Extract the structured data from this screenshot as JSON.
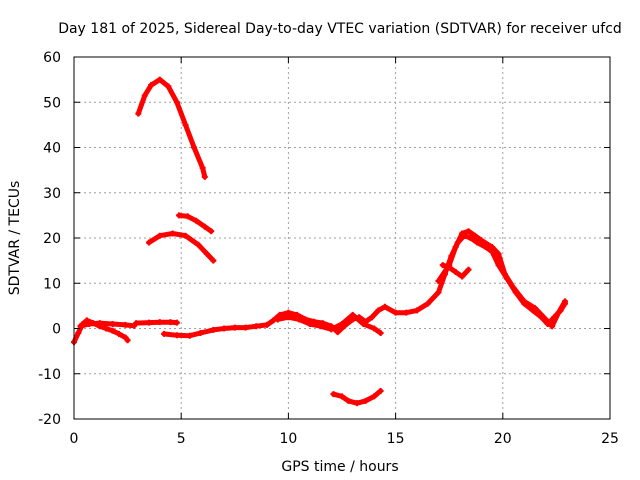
{
  "chart_data": {
    "type": "line",
    "title": "Day 181 of 2025, Sidereal Day-to-day VTEC variation (SDTVAR) for receiver ufcd",
    "xlabel": "GPS time / hours",
    "ylabel": "SDTVAR / TECUs",
    "xlim": [
      0,
      25
    ],
    "ylim": [
      -20,
      60
    ],
    "xticks": [
      0,
      5,
      10,
      15,
      20,
      25
    ],
    "yticks": [
      -20,
      -10,
      0,
      10,
      20,
      30,
      40,
      50,
      60
    ],
    "grid": true,
    "color": "#ff0000",
    "series": [
      {
        "name": "arc-peak-55",
        "points": [
          [
            3.0,
            47.5
          ],
          [
            3.3,
            51.5
          ],
          [
            3.6,
            53.8
          ],
          [
            4.0,
            55.0
          ],
          [
            4.4,
            53.5
          ],
          [
            4.8,
            50.0
          ],
          [
            5.2,
            45.0
          ],
          [
            5.6,
            40.0
          ],
          [
            6.0,
            35.5
          ],
          [
            6.1,
            33.5
          ]
        ]
      },
      {
        "name": "arc-25",
        "points": [
          [
            4.9,
            25.0
          ],
          [
            5.3,
            24.8
          ],
          [
            5.7,
            23.8
          ],
          [
            6.1,
            22.5
          ],
          [
            6.4,
            21.5
          ]
        ]
      },
      {
        "name": "arc-21",
        "points": [
          [
            3.5,
            19.0
          ],
          [
            4.0,
            20.5
          ],
          [
            4.6,
            21.0
          ],
          [
            5.2,
            20.5
          ],
          [
            5.8,
            18.5
          ],
          [
            6.2,
            16.5
          ],
          [
            6.5,
            15.0
          ]
        ]
      },
      {
        "name": "early-cluster",
        "points": [
          [
            0.0,
            -3.0
          ],
          [
            0.2,
            -1.0
          ],
          [
            0.4,
            1.0
          ],
          [
            0.6,
            1.8
          ],
          [
            0.9,
            1.2
          ],
          [
            1.2,
            0.5
          ],
          [
            1.5,
            0.0
          ],
          [
            1.8,
            -0.5
          ],
          [
            2.1,
            -1.2
          ],
          [
            2.4,
            -2.0
          ],
          [
            2.5,
            -2.6
          ]
        ]
      },
      {
        "name": "early-flat",
        "points": [
          [
            0.3,
            0.5
          ],
          [
            0.7,
            1.0
          ],
          [
            1.2,
            1.2
          ],
          [
            1.8,
            1.0
          ],
          [
            2.4,
            0.8
          ],
          [
            2.8,
            0.6
          ]
        ]
      },
      {
        "name": "flat-1p5",
        "points": [
          [
            2.9,
            1.2
          ],
          [
            3.5,
            1.3
          ],
          [
            4.0,
            1.4
          ],
          [
            4.5,
            1.4
          ],
          [
            4.8,
            1.3
          ]
        ]
      },
      {
        "name": "long-baseline",
        "points": [
          [
            4.2,
            -1.2
          ],
          [
            4.8,
            -1.5
          ],
          [
            5.4,
            -1.6
          ],
          [
            5.9,
            -1.0
          ],
          [
            6.5,
            -0.3
          ],
          [
            7.0,
            0.0
          ],
          [
            7.5,
            0.2
          ],
          [
            8.0,
            0.2
          ],
          [
            8.5,
            0.5
          ],
          [
            9.0,
            0.8
          ],
          [
            9.3,
            1.8
          ],
          [
            9.6,
            3.0
          ],
          [
            10.0,
            3.5
          ],
          [
            10.4,
            3.0
          ],
          [
            10.8,
            2.0
          ],
          [
            11.2,
            1.5
          ],
          [
            11.6,
            1.2
          ],
          [
            12.0,
            0.5
          ],
          [
            12.3,
            -0.8
          ],
          [
            12.6,
            0.5
          ],
          [
            13.0,
            2.0
          ],
          [
            13.3,
            2.5
          ],
          [
            13.6,
            1.5
          ],
          [
            13.9,
            2.5
          ],
          [
            14.2,
            4.0
          ],
          [
            14.5,
            4.8
          ],
          [
            15.0,
            3.5
          ],
          [
            15.5,
            3.5
          ],
          [
            16.0,
            4.0
          ],
          [
            16.5,
            5.5
          ],
          [
            17.0,
            8.0
          ],
          [
            17.3,
            12.0
          ],
          [
            17.6,
            16.0
          ],
          [
            17.9,
            19.0
          ],
          [
            18.2,
            20.5
          ],
          [
            18.5,
            20.0
          ],
          [
            18.8,
            19.0
          ],
          [
            19.2,
            18.0
          ],
          [
            19.5,
            17.0
          ],
          [
            19.8,
            14.0
          ],
          [
            20.2,
            11.0
          ],
          [
            20.6,
            8.0
          ],
          [
            21.0,
            5.5
          ],
          [
            21.4,
            4.0
          ],
          [
            21.8,
            2.5
          ],
          [
            22.1,
            1.0
          ],
          [
            22.4,
            2.5
          ],
          [
            22.7,
            4.0
          ],
          [
            22.9,
            5.5
          ]
        ]
      },
      {
        "name": "parallel-arc",
        "points": [
          [
            9.5,
            2.0
          ],
          [
            10.0,
            2.5
          ],
          [
            10.5,
            2.0
          ],
          [
            11.0,
            1.0
          ],
          [
            11.5,
            0.5
          ],
          [
            12.0,
            -0.2
          ],
          [
            12.5,
            1.0
          ],
          [
            13.0,
            3.0
          ],
          [
            13.5,
            1.0
          ],
          [
            14.0,
            0.0
          ],
          [
            14.3,
            -1.0
          ]
        ]
      },
      {
        "name": "hump-peak-21",
        "points": [
          [
            17.0,
            10.5
          ],
          [
            17.5,
            14.0
          ],
          [
            17.8,
            18.0
          ],
          [
            18.1,
            21.0
          ],
          [
            18.4,
            21.5
          ],
          [
            18.7,
            20.5
          ],
          [
            19.0,
            19.5
          ],
          [
            19.5,
            18.0
          ],
          [
            19.8,
            16.5
          ],
          [
            20.1,
            12.0
          ],
          [
            20.5,
            9.0
          ],
          [
            21.0,
            6.0
          ],
          [
            21.5,
            4.5
          ],
          [
            22.0,
            2.0
          ],
          [
            22.3,
            0.5
          ],
          [
            22.6,
            3.5
          ],
          [
            22.9,
            6.0
          ]
        ]
      },
      {
        "name": "hump-offshoot",
        "points": [
          [
            17.2,
            14.0
          ],
          [
            17.5,
            13.5
          ],
          [
            17.8,
            12.5
          ],
          [
            18.1,
            11.5
          ],
          [
            18.4,
            13.0
          ]
        ]
      },
      {
        "name": "dip-minus-15",
        "points": [
          [
            12.1,
            -14.5
          ],
          [
            12.5,
            -15.0
          ],
          [
            12.8,
            -16.0
          ],
          [
            13.2,
            -16.5
          ],
          [
            13.6,
            -16.0
          ],
          [
            14.0,
            -15.0
          ],
          [
            14.3,
            -13.8
          ]
        ]
      }
    ]
  }
}
